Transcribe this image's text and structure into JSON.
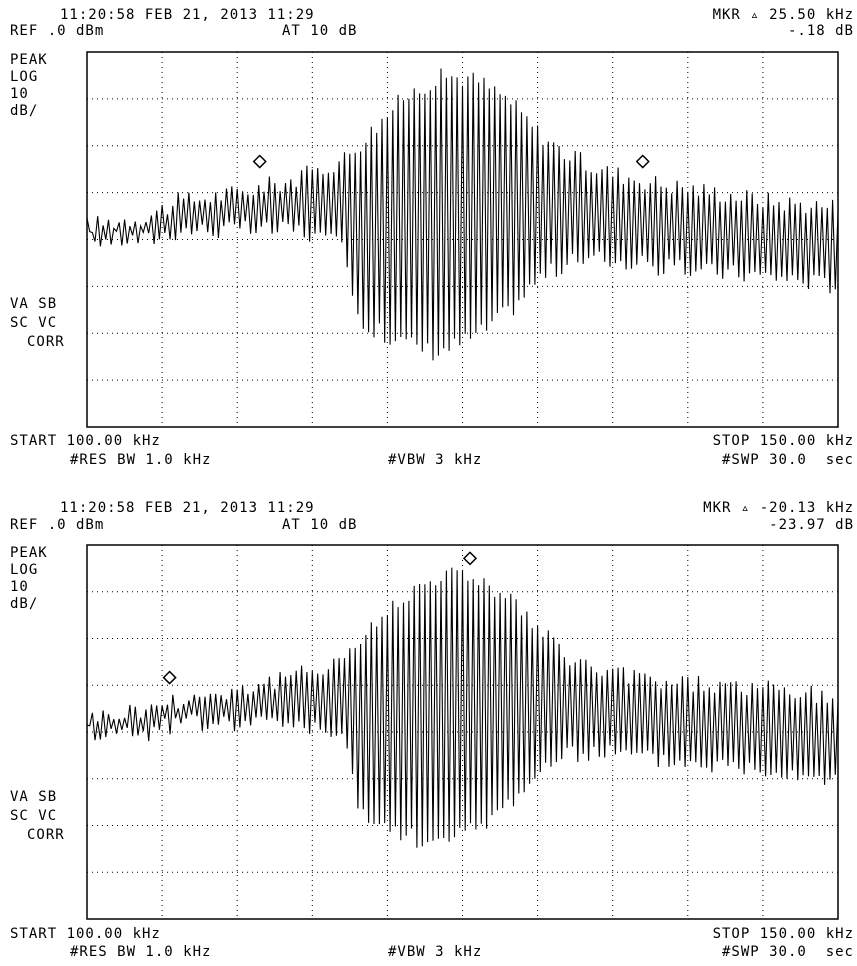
{
  "panels": [
    {
      "timestamp": "11:20:58 FEB 21, 2013 11:29",
      "ref_level": "REF .0 dBm",
      "attenuation": "AT 10 dB",
      "marker_delta": "MKR ▵ 25.50 kHz",
      "marker_value": "-.18 dB",
      "detector": "PEAK",
      "scale_type": "LOG",
      "scale_value": "10",
      "scale_unit": "dB/",
      "status_line1": "VA SB",
      "status_line2": "SC VC",
      "status_line3": "CORR",
      "start": "START 100.00 kHz",
      "stop": "STOP 150.00 kHz",
      "rbw": "#RES BW 1.0 kHz",
      "vbw": "#VBW 3 kHz",
      "sweep": "#SWP 30.0  sec"
    },
    {
      "timestamp": "11:20:58 FEB 21, 2013 11:29",
      "ref_level": "REF .0 dBm",
      "attenuation": "AT 10 dB",
      "marker_delta": "MKR ▵ -20.13 kHz",
      "marker_value": "-23.97 dB",
      "detector": "PEAK",
      "scale_type": "LOG",
      "scale_value": "10",
      "scale_unit": "dB/",
      "status_line1": "VA SB",
      "status_line2": "SC VC",
      "status_line3": "CORR",
      "start": "START 100.00 kHz",
      "stop": "STOP 150.00 kHz",
      "rbw": "#RES BW 1.0 kHz",
      "vbw": "#VBW 3 kHz",
      "sweep": "#SWP 30.0  sec"
    }
  ],
  "chart_data": [
    {
      "type": "line",
      "x_unit": "kHz",
      "y_unit": "dBm",
      "xlim": [
        100,
        150
      ],
      "ylim": [
        -80,
        0
      ],
      "grid": true,
      "grid_divisions": [
        10,
        8
      ],
      "envelope": {
        "x": [
          100,
          104,
          106,
          110,
          114,
          117,
          118,
          121,
          123,
          124,
          126,
          128,
          130,
          132,
          134,
          138,
          142,
          146,
          150
        ],
        "y_max": [
          -37,
          -35,
          -32,
          -30,
          -27,
          -23,
          -20,
          -10,
          -6,
          -5,
          -6,
          -10,
          -17,
          -22,
          -25,
          -28,
          -30,
          -32,
          -33
        ],
        "y_min": [
          -40,
          -40,
          -38,
          -38,
          -38,
          -42,
          -58,
          -62,
          -64,
          -63,
          -60,
          -55,
          -48,
          -45,
          -44,
          -46,
          -47,
          -48,
          -50
        ]
      },
      "markers": [
        {
          "x": 111.5,
          "y": -25.5,
          "symbol": "diamond"
        },
        {
          "x": 137.0,
          "y": -25.5,
          "symbol": "diamond"
        }
      ]
    },
    {
      "type": "line",
      "x_unit": "kHz",
      "y_unit": "dBm",
      "xlim": [
        100,
        150
      ],
      "ylim": [
        -80,
        0
      ],
      "grid": true,
      "grid_divisions": [
        10,
        8
      ],
      "envelope": {
        "x": [
          100,
          104,
          106,
          110,
          114,
          117,
          118,
          121,
          123,
          124,
          126,
          128,
          130,
          132,
          134,
          138,
          142,
          146,
          150
        ],
        "y_max": [
          -37,
          -35,
          -33,
          -31,
          -28,
          -24,
          -21,
          -11,
          -7,
          -6,
          -7,
          -11,
          -18,
          -24,
          -27,
          -29,
          -30,
          -31,
          -33
        ],
        "y_min": [
          -40,
          -40,
          -38,
          -38,
          -38,
          -42,
          -58,
          -62,
          -64,
          -63,
          -60,
          -55,
          -48,
          -45,
          -44,
          -46,
          -47,
          -48,
          -50
        ]
      },
      "markers": [
        {
          "x": 105.5,
          "y": -30.5,
          "symbol": "diamond"
        },
        {
          "x": 125.5,
          "y": -5.0,
          "symbol": "diamond"
        }
      ]
    }
  ]
}
